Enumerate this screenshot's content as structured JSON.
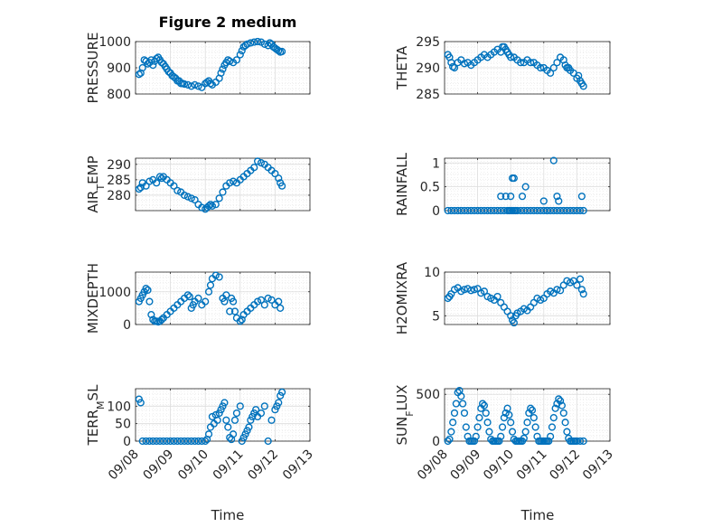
{
  "figure": {
    "title": "Figure 2 medium",
    "xlabel": "Time"
  },
  "chart_data": [
    {
      "type": "scatter",
      "ylabel": "PRESSURE",
      "ylim": [
        800,
        1000
      ],
      "yticks": [
        "800",
        "900",
        "1000"
      ],
      "xticks": [
        "09/08",
        "09/09",
        "09/10",
        "09/11",
        "09/12",
        "09/13"
      ],
      "xlim": [
        0,
        5
      ],
      "grid": true,
      "marker_color": "#0072BD",
      "series": [
        {
          "x": [
            0.1,
            0.15,
            0.2,
            0.25,
            0.3,
            0.35,
            0.4,
            0.45,
            0.5,
            0.55,
            0.6,
            0.65,
            0.7,
            0.75,
            0.8,
            0.85,
            0.9,
            0.95,
            1.0,
            1.05,
            1.1,
            1.15,
            1.2,
            1.25,
            1.3,
            1.35,
            1.4,
            1.5,
            1.6,
            1.7,
            1.8,
            1.9,
            2.0,
            2.05,
            2.1,
            2.15,
            2.2,
            2.3,
            2.4,
            2.45,
            2.5,
            2.55,
            2.6,
            2.65,
            2.7,
            2.8,
            2.9,
            3.0,
            3.05,
            3.1,
            3.15,
            3.2,
            3.3,
            3.4,
            3.5,
            3.6,
            3.7,
            3.8,
            3.85,
            3.9,
            3.95,
            4.0,
            4.05,
            4.1,
            4.15,
            4.2
          ],
          "y": [
            875,
            880,
            900,
            930,
            925,
            915,
            920,
            930,
            910,
            925,
            935,
            940,
            930,
            920,
            915,
            905,
            895,
            885,
            880,
            870,
            865,
            860,
            850,
            850,
            840,
            840,
            838,
            835,
            830,
            835,
            830,
            825,
            840,
            845,
            850,
            840,
            835,
            845,
            860,
            880,
            895,
            910,
            920,
            930,
            925,
            920,
            930,
            950,
            965,
            980,
            985,
            990,
            995,
            998,
            1000,
            998,
            990,
            985,
            995,
            990,
            980,
            975,
            970,
            965,
            960,
            962
          ]
        }
      ]
    },
    {
      "type": "scatter",
      "ylabel": "THETA",
      "ylim": [
        285,
        295
      ],
      "yticks": [
        "285",
        "290",
        "295"
      ],
      "xticks": [
        "09/08",
        "09/09",
        "09/10",
        "09/11",
        "09/12",
        "09/13"
      ],
      "xlim": [
        0,
        5
      ],
      "grid": true,
      "marker_color": "#0072BD",
      "series": [
        {
          "x": [
            0.1,
            0.15,
            0.2,
            0.25,
            0.3,
            0.4,
            0.5,
            0.6,
            0.7,
            0.8,
            0.9,
            1.0,
            1.1,
            1.2,
            1.3,
            1.4,
            1.5,
            1.6,
            1.7,
            1.75,
            1.8,
            1.85,
            1.9,
            1.95,
            2.0,
            2.1,
            2.2,
            2.3,
            2.4,
            2.5,
            2.6,
            2.7,
            2.8,
            2.9,
            3.0,
            3.1,
            3.2,
            3.3,
            3.4,
            3.5,
            3.6,
            3.65,
            3.7,
            3.75,
            3.8,
            3.9,
            4.0,
            4.05,
            4.1,
            4.15,
            4.2
          ],
          "y": [
            292.5,
            292,
            291,
            290.2,
            290,
            291,
            291.5,
            290.8,
            291,
            290.5,
            291,
            291.5,
            292,
            292.5,
            292,
            292.5,
            293,
            293.5,
            293,
            294,
            294,
            293.5,
            293,
            292.5,
            292,
            292,
            291.5,
            291,
            291,
            291.5,
            291,
            291,
            290.5,
            290,
            290,
            289.5,
            289,
            290,
            291,
            292,
            291.5,
            290.5,
            290,
            290,
            289.5,
            289,
            288,
            288.5,
            287.5,
            287,
            286.5
          ]
        }
      ]
    },
    {
      "type": "scatter",
      "ylabel": "AIR_TEMP",
      "ylim": [
        275,
        292
      ],
      "yticks": [
        "280",
        "285",
        "290"
      ],
      "xticks": [
        "09/08",
        "09/09",
        "09/10",
        "09/11",
        "09/12",
        "09/13"
      ],
      "xlim": [
        0,
        5
      ],
      "grid": true,
      "marker_color": "#0072BD",
      "series": [
        {
          "x": [
            0.1,
            0.15,
            0.2,
            0.3,
            0.4,
            0.5,
            0.6,
            0.7,
            0.75,
            0.8,
            0.9,
            1.0,
            1.1,
            1.2,
            1.3,
            1.4,
            1.5,
            1.6,
            1.7,
            1.8,
            1.9,
            2.0,
            2.05,
            2.1,
            2.15,
            2.2,
            2.3,
            2.4,
            2.5,
            2.6,
            2.7,
            2.8,
            2.9,
            3.0,
            3.1,
            3.2,
            3.3,
            3.4,
            3.5,
            3.6,
            3.7,
            3.8,
            3.9,
            4.0,
            4.1,
            4.15,
            4.2
          ],
          "y": [
            282,
            282.5,
            284,
            283,
            284.5,
            285,
            284,
            286,
            285.5,
            286,
            285,
            284,
            283,
            281.5,
            281,
            280,
            279.5,
            279,
            278.5,
            277,
            276,
            275.5,
            276,
            276.5,
            277,
            276.5,
            277,
            279,
            281,
            283,
            284,
            284.5,
            284,
            285,
            286,
            287,
            288,
            289,
            291,
            290.5,
            290,
            289,
            288,
            287,
            285.5,
            284,
            283
          ]
        }
      ]
    },
    {
      "type": "scatter",
      "ylabel": "RAINFALL",
      "ylim": [
        0,
        1.1
      ],
      "yticks": [
        "0",
        "0.5",
        "1"
      ],
      "xticks": [
        "09/08",
        "09/09",
        "09/10",
        "09/11",
        "09/12",
        "09/13"
      ],
      "xlim": [
        0,
        5
      ],
      "grid": true,
      "marker_color": "#0072BD",
      "series": [
        {
          "x": [
            0.1,
            0.2,
            0.3,
            0.4,
            0.5,
            0.6,
            0.7,
            0.8,
            0.9,
            1.0,
            1.1,
            1.2,
            1.3,
            1.4,
            1.5,
            1.6,
            1.7,
            1.8,
            1.9,
            1.95,
            2.0,
            2.05,
            2.1,
            2.15,
            2.2,
            2.3,
            2.4,
            2.5,
            2.6,
            2.7,
            2.8,
            2.9,
            3.0,
            3.1,
            3.2,
            3.3,
            3.4,
            3.5,
            3.6,
            3.7,
            3.8,
            3.9,
            4.0,
            4.1,
            4.2,
            1.7,
            1.85,
            2.0,
            2.05,
            2.1,
            2.35,
            2.45,
            3.0,
            3.1,
            3.3,
            3.4,
            3.45,
            4.15
          ],
          "y": [
            0,
            0,
            0,
            0,
            0,
            0,
            0,
            0,
            0,
            0,
            0,
            0,
            0,
            0,
            0,
            0,
            0,
            0,
            0,
            0,
            0,
            0,
            0,
            0,
            0,
            0,
            0,
            0,
            0,
            0,
            0,
            0,
            0,
            0,
            0,
            0,
            0,
            0,
            0,
            0,
            0,
            0,
            0,
            0,
            0,
            0.3,
            0.3,
            0.3,
            0.68,
            0.68,
            0.3,
            0.5,
            0.2,
            0,
            1.05,
            0.3,
            0.2,
            0.3
          ]
        }
      ]
    },
    {
      "type": "scatter",
      "ylabel": "MIXDEPTH",
      "ylim": [
        0,
        1600
      ],
      "yticks": [
        "0",
        "1000"
      ],
      "xticks": [
        "09/08",
        "09/09",
        "09/10",
        "09/11",
        "09/12",
        "09/13"
      ],
      "xlim": [
        0,
        5
      ],
      "grid": true,
      "marker_color": "#0072BD",
      "series": [
        {
          "x": [
            0.1,
            0.15,
            0.2,
            0.25,
            0.3,
            0.35,
            0.4,
            0.45,
            0.5,
            0.55,
            0.6,
            0.65,
            0.7,
            0.75,
            0.8,
            0.9,
            1.0,
            1.1,
            1.2,
            1.3,
            1.4,
            1.5,
            1.55,
            1.6,
            1.65,
            1.7,
            1.8,
            1.9,
            2.0,
            2.1,
            2.15,
            2.2,
            2.3,
            2.4,
            2.5,
            2.55,
            2.6,
            2.7,
            2.75,
            2.8,
            2.85,
            2.9,
            3.0,
            3.05,
            3.1,
            3.2,
            3.3,
            3.4,
            3.5,
            3.6,
            3.7,
            3.8,
            3.9,
            4.0,
            4.1,
            4.15
          ],
          "y": [
            700,
            800,
            900,
            1000,
            1100,
            1050,
            700,
            300,
            150,
            100,
            100,
            80,
            100,
            150,
            200,
            300,
            400,
            500,
            600,
            700,
            800,
            900,
            850,
            500,
            600,
            700,
            800,
            600,
            700,
            1000,
            1200,
            1400,
            1500,
            1450,
            800,
            700,
            900,
            400,
            800,
            700,
            400,
            200,
            100,
            150,
            300,
            400,
            500,
            600,
            700,
            750,
            600,
            800,
            750,
            600,
            700,
            500
          ]
        }
      ]
    },
    {
      "type": "scatter",
      "ylabel": "H2OMIXRA",
      "ylim": [
        4,
        10
      ],
      "yticks": [
        "5",
        "10"
      ],
      "xticks": [
        "09/08",
        "09/09",
        "09/10",
        "09/11",
        "09/12",
        "09/13"
      ],
      "xlim": [
        0,
        5
      ],
      "grid": true,
      "marker_color": "#0072BD",
      "series": [
        {
          "x": [
            0.1,
            0.15,
            0.2,
            0.3,
            0.4,
            0.5,
            0.6,
            0.7,
            0.8,
            0.9,
            1.0,
            1.1,
            1.2,
            1.3,
            1.4,
            1.5,
            1.6,
            1.7,
            1.8,
            1.9,
            2.0,
            2.05,
            2.1,
            2.15,
            2.2,
            2.3,
            2.4,
            2.5,
            2.6,
            2.7,
            2.8,
            2.9,
            3.0,
            3.1,
            3.2,
            3.3,
            3.4,
            3.5,
            3.6,
            3.7,
            3.8,
            3.9,
            4.0,
            4.1,
            4.15,
            4.2
          ],
          "y": [
            7,
            7.2,
            7.5,
            8,
            8.2,
            7.8,
            8,
            8.1,
            7.9,
            8,
            8.1,
            7.6,
            7.8,
            7.2,
            7,
            6.8,
            7.2,
            6.5,
            6,
            5.5,
            5,
            4.5,
            4.2,
            5,
            5.3,
            5.5,
            5.8,
            5.6,
            6,
            6.5,
            7,
            6.8,
            7,
            7.5,
            7.8,
            7.6,
            8,
            7.9,
            8.5,
            9,
            8.8,
            9,
            8.5,
            9.2,
            8,
            7.5
          ]
        }
      ]
    },
    {
      "type": "scatter",
      "ylabel": "TERR_MSL",
      "ylim": [
        0,
        150
      ],
      "yticks": [
        "0",
        "50",
        "100"
      ],
      "xticks": [
        "09/08",
        "09/09",
        "09/10",
        "09/11",
        "09/12",
        "09/13"
      ],
      "xlim": [
        0,
        5
      ],
      "grid": true,
      "marker_color": "#0072BD",
      "series": [
        {
          "x": [
            0.1,
            0.15,
            0.2,
            0.3,
            0.4,
            0.5,
            0.6,
            0.7,
            0.8,
            0.9,
            1.0,
            1.1,
            1.2,
            1.3,
            1.4,
            1.5,
            1.6,
            1.7,
            1.8,
            1.9,
            2.0,
            2.05,
            2.1,
            2.15,
            2.2,
            2.25,
            2.3,
            2.35,
            2.4,
            2.45,
            2.5,
            2.55,
            2.6,
            2.65,
            2.7,
            2.75,
            2.8,
            2.85,
            2.9,
            3.0,
            3.05,
            3.1,
            3.15,
            3.2,
            3.25,
            3.3,
            3.35,
            3.4,
            3.45,
            3.5,
            3.6,
            3.7,
            3.8,
            3.9,
            4.0,
            4.05,
            4.1,
            4.15,
            4.2
          ],
          "y": [
            120,
            110,
            0,
            0,
            0,
            0,
            0,
            0,
            0,
            0,
            0,
            0,
            0,
            0,
            0,
            0,
            0,
            0,
            0,
            0,
            0,
            5,
            20,
            40,
            70,
            50,
            75,
            60,
            80,
            90,
            100,
            110,
            60,
            40,
            10,
            5,
            20,
            60,
            80,
            100,
            0,
            10,
            20,
            30,
            40,
            60,
            70,
            80,
            90,
            70,
            80,
            100,
            0,
            60,
            90,
            100,
            110,
            130,
            140
          ]
        }
      ]
    },
    {
      "type": "scatter",
      "ylabel": "SUN_FLUX",
      "ylim": [
        0,
        560
      ],
      "yticks": [
        "0",
        "500"
      ],
      "xticks": [
        "09/08",
        "09/09",
        "09/10",
        "09/11",
        "09/12",
        "09/13"
      ],
      "xlim": [
        0,
        5
      ],
      "grid": true,
      "marker_color": "#0072BD",
      "series": [
        {
          "x": [
            0.1,
            0.15,
            0.2,
            0.25,
            0.3,
            0.35,
            0.4,
            0.45,
            0.5,
            0.55,
            0.6,
            0.65,
            0.7,
            0.75,
            0.8,
            0.85,
            0.9,
            0.95,
            1.0,
            1.05,
            1.1,
            1.15,
            1.2,
            1.25,
            1.3,
            1.35,
            1.4,
            1.45,
            1.5,
            1.55,
            1.6,
            1.65,
            1.7,
            1.75,
            1.8,
            1.85,
            1.9,
            1.95,
            2.0,
            2.05,
            2.1,
            2.15,
            2.2,
            2.25,
            2.3,
            2.35,
            2.4,
            2.45,
            2.5,
            2.55,
            2.6,
            2.65,
            2.7,
            2.75,
            2.8,
            2.85,
            2.9,
            2.95,
            3.0,
            3.05,
            3.1,
            3.15,
            3.2,
            3.25,
            3.3,
            3.35,
            3.4,
            3.45,
            3.5,
            3.55,
            3.6,
            3.65,
            3.7,
            3.75,
            3.8,
            3.85,
            3.9,
            3.95,
            4.0,
            4.1,
            4.2
          ],
          "y": [
            0,
            20,
            100,
            200,
            300,
            400,
            520,
            540,
            480,
            400,
            300,
            150,
            50,
            0,
            0,
            0,
            0,
            50,
            150,
            250,
            350,
            400,
            380,
            300,
            200,
            100,
            20,
            0,
            0,
            0,
            0,
            0,
            50,
            150,
            250,
            300,
            350,
            280,
            200,
            100,
            20,
            0,
            0,
            0,
            0,
            0,
            30,
            100,
            200,
            300,
            350,
            330,
            250,
            150,
            50,
            0,
            0,
            0,
            0,
            0,
            0,
            0,
            50,
            150,
            250,
            350,
            400,
            450,
            430,
            380,
            300,
            200,
            100,
            30,
            0,
            0,
            0,
            0,
            0,
            0,
            0
          ]
        }
      ]
    }
  ]
}
